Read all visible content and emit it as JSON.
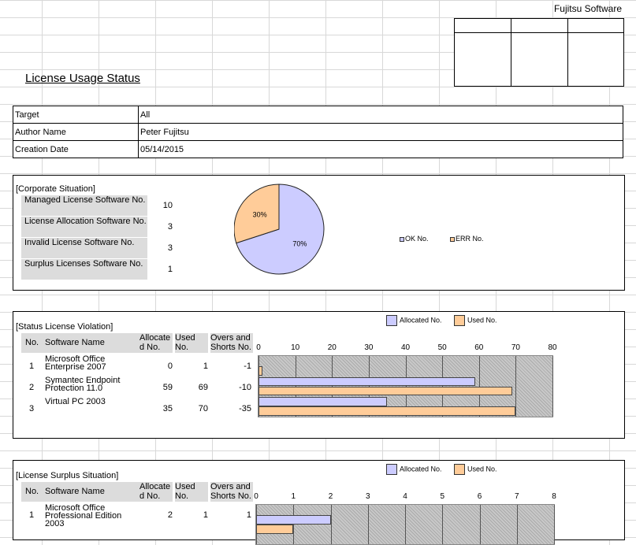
{
  "header": {
    "company": "Fujitsu Software",
    "title": "License Usage Status"
  },
  "info": [
    {
      "key": "Target",
      "value": "All"
    },
    {
      "key": "Author Name",
      "value": "Peter Fujitsu"
    },
    {
      "key": "Creation Date",
      "value": "05/14/2015"
    }
  ],
  "corporate": {
    "title": "[Corporate Situation]",
    "rows": [
      {
        "label": "Managed License Software No.",
        "value": "10"
      },
      {
        "label": "License Allocation Software No.",
        "value": "3"
      },
      {
        "label": "Invalid License Software No.",
        "value": "3"
      },
      {
        "label": "Surplus Licenses Software No.",
        "value": "1"
      }
    ],
    "legend": [
      "OK No.",
      "ERR No."
    ]
  },
  "violation": {
    "title": "[Status License Violation]",
    "headers": {
      "no": "No.",
      "name": "Software Name",
      "alloc": "Allocate d No.",
      "used": "Used No.",
      "overs": "Overs and Shorts No."
    },
    "rows": [
      {
        "no": "1",
        "name": "Microsoft Office Enterprise 2007",
        "alloc": "0",
        "used": "1",
        "overs": "-1"
      },
      {
        "no": "2",
        "name": "Symantec Endpoint Protection 11.0",
        "alloc": "59",
        "used": "69",
        "overs": "-10"
      },
      {
        "no": "3",
        "name": "Virtual PC 2003",
        "alloc": "35",
        "used": "70",
        "overs": "-35"
      }
    ]
  },
  "surplus": {
    "title": "[License Surplus Situation]",
    "headers": {
      "no": "No.",
      "name": "Software Name",
      "alloc": "Allocate d No.",
      "used": "Used No.",
      "overs": "Overs and Shorts No."
    },
    "rows": [
      {
        "no": "1",
        "name": "Microsoft Office Professional Edition 2003",
        "alloc": "2",
        "used": "1",
        "overs": "1"
      }
    ]
  },
  "chart_data": [
    {
      "type": "pie",
      "slices": [
        {
          "label": "OK No.",
          "value": 70,
          "label_text": "70%",
          "color": "#ccccff"
        },
        {
          "label": "ERR No.",
          "value": 30,
          "label_text": "30%",
          "color": "#ffcc99"
        }
      ],
      "legend_position": "right"
    },
    {
      "type": "bar",
      "orientation": "horizontal",
      "categories": [
        "Microsoft Office Enterprise 2007",
        "Symantec Endpoint Protection 11.0",
        "Virtual PC 2003"
      ],
      "series": [
        {
          "name": "Allocated No.",
          "values": [
            0,
            59,
            35
          ],
          "color": "#ccccff"
        },
        {
          "name": "Used No.",
          "values": [
            1,
            69,
            70
          ],
          "color": "#ffcc99"
        }
      ],
      "xlim": [
        0,
        80
      ],
      "ticks": [
        0,
        10,
        20,
        30,
        40,
        50,
        60,
        70,
        80
      ],
      "legend_position": "top"
    },
    {
      "type": "bar",
      "orientation": "horizontal",
      "categories": [
        "Microsoft Office Professional Edition 2003"
      ],
      "series": [
        {
          "name": "Allocated No.",
          "values": [
            2
          ],
          "color": "#ccccff"
        },
        {
          "name": "Used No.",
          "values": [
            1
          ],
          "color": "#ffcc99"
        }
      ],
      "xlim": [
        0,
        8
      ],
      "ticks": [
        0,
        1,
        2,
        3,
        4,
        5,
        6,
        7,
        8
      ],
      "legend_position": "top"
    }
  ]
}
